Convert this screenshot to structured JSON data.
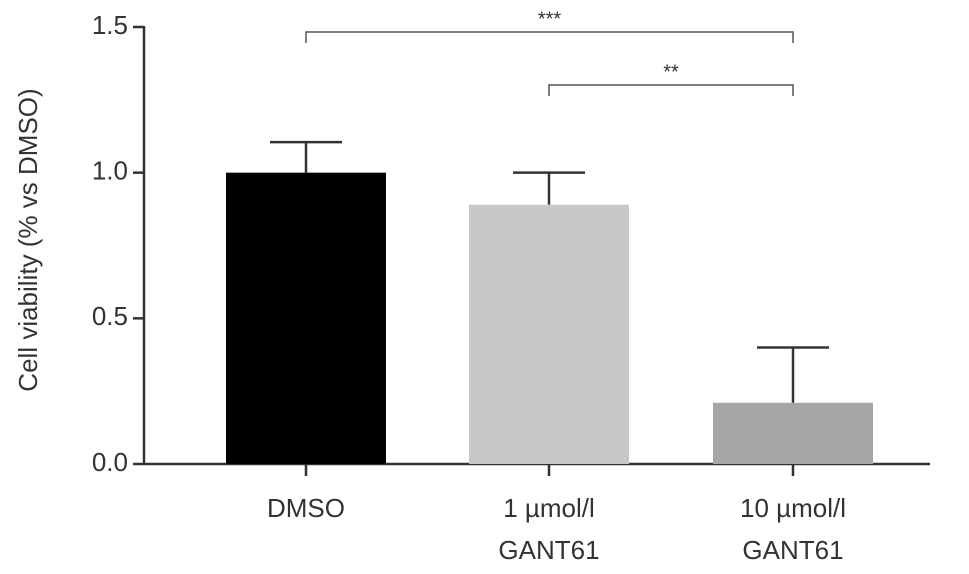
{
  "chart_data": {
    "type": "bar",
    "y_label": "Cell viability (% vs DMSO)",
    "categories": [
      [
        "DMSO"
      ],
      [
        "1 µmol/l",
        "GANT61"
      ],
      [
        "10 µmol/l",
        "GANT61"
      ]
    ],
    "values": [
      1.0,
      0.89,
      0.21
    ],
    "errors": [
      0.105,
      0.11,
      0.19
    ],
    "colors": [
      "#000000",
      "#c8c8c8",
      "#a6a6a6"
    ],
    "ylim": [
      0,
      1.5
    ],
    "yticks": [
      {
        "value": 0,
        "label": "0.0"
      },
      0.5,
      {
        "value": 1,
        "label": "1.0"
      },
      1.5
    ],
    "brackets": [
      {
        "from": 0,
        "to": 2,
        "label": "***"
      },
      {
        "from": 1,
        "to": 2,
        "label": "**"
      }
    ]
  }
}
